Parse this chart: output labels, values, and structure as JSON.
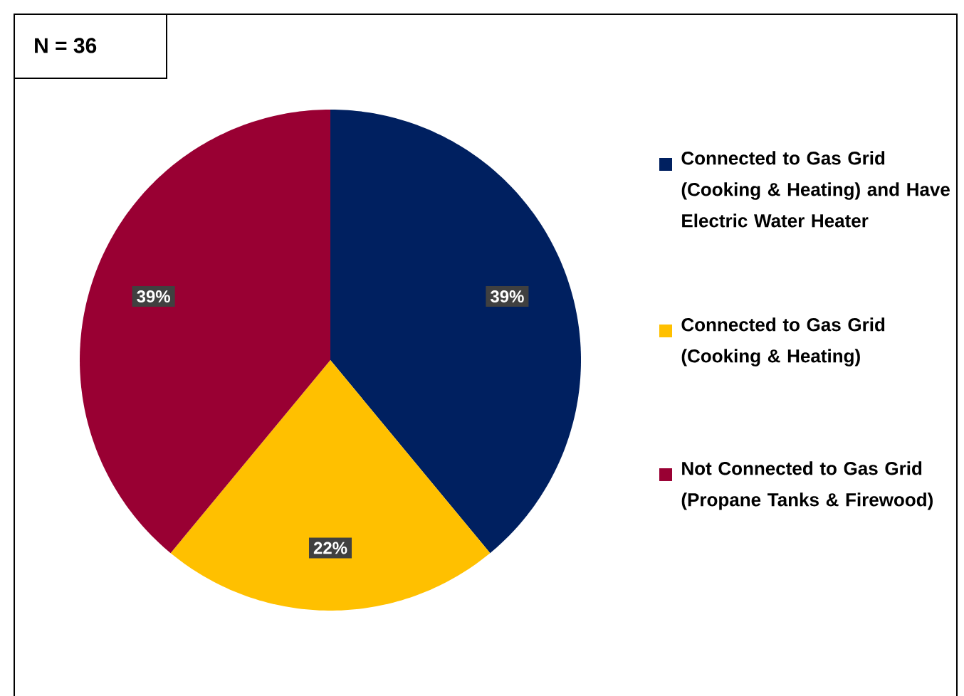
{
  "chart_data": {
    "type": "pie",
    "title": "N = 36",
    "categories": [
      "Connected to Gas Grid (Cooking & Heating) and Have Electric Water Heater",
      "Connected to Gas Grid (Cooking & Heating)",
      "Not Connected to Gas Grid (Propane Tanks & Firewood)"
    ],
    "values": [
      39,
      22,
      39
    ],
    "colors": [
      "#002060",
      "#ffc000",
      "#990033"
    ],
    "value_labels": [
      "39%",
      "22%",
      "39%"
    ],
    "legend": "right"
  }
}
